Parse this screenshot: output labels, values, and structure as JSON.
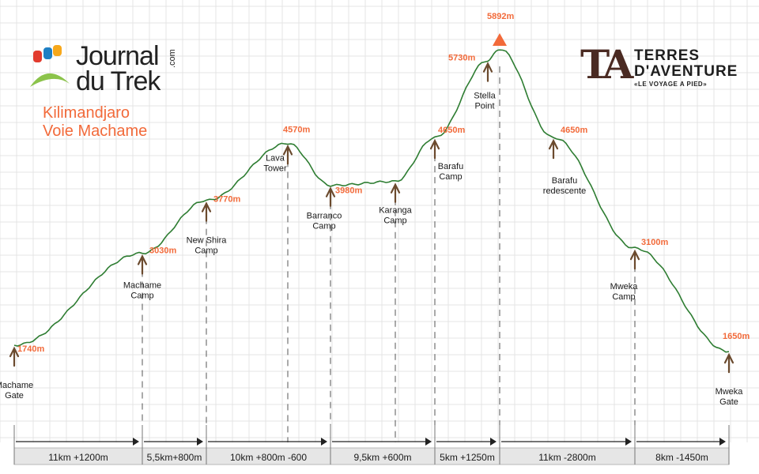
{
  "logos": {
    "journal": {
      "line1": "Journal",
      "line2": "du Trek",
      "suffix": ".com"
    },
    "terres": {
      "mark": "TA",
      "line1": "TERRES",
      "line2": "D'AVENTURE",
      "tagline": "«LE VOYAGE A PIED»"
    }
  },
  "route_title": {
    "line1": "Kilimandjaro",
    "line2": "Voie Machame"
  },
  "colors": {
    "profile_line": "#2e7d32",
    "altitude_label": "#f26a3a",
    "marker_arrow": "#6b4a2e",
    "summit_marker": "#f26a3a",
    "grid": "#e4e4e4",
    "segment_bar": "#e6e6e6"
  },
  "chart_data": {
    "type": "line",
    "title": "",
    "ylabel": "",
    "xlabel": "",
    "grid": true,
    "ylim": [
      1500,
      6000
    ],
    "waypoints": [
      {
        "name_lines": [
          "Machame",
          "Gate"
        ],
        "altitude": "1740m",
        "elevation": 1740
      },
      {
        "name_lines": [
          "Machame",
          "Camp"
        ],
        "altitude": "3030m",
        "elevation": 3030
      },
      {
        "name_lines": [
          "New Shira",
          "Camp"
        ],
        "altitude": "3770m",
        "elevation": 3770
      },
      {
        "name_lines": [
          "Lava",
          "Tower"
        ],
        "altitude": "4570m",
        "elevation": 4570
      },
      {
        "name_lines": [
          "Barranco",
          "Camp"
        ],
        "altitude": "3980m",
        "elevation": 3980
      },
      {
        "name_lines": [
          "Karanga",
          "Camp"
        ],
        "altitude": "",
        "elevation": 4035
      },
      {
        "name_lines": [
          "Barafu",
          "Camp"
        ],
        "altitude": "4650m",
        "elevation": 4650
      },
      {
        "name_lines": [
          "Stella",
          "Point"
        ],
        "altitude": "5730m",
        "elevation": 5730
      },
      {
        "name_lines": [],
        "altitude": "5892m",
        "elevation": 5892,
        "summit": true
      },
      {
        "name_lines": [
          "Barafu",
          "redescente"
        ],
        "altitude": "4650m",
        "elevation": 4650
      },
      {
        "name_lines": [
          "Mweka",
          "Camp"
        ],
        "altitude": "3100m",
        "elevation": 3100
      },
      {
        "name_lines": [
          "Mweka",
          "Gate"
        ],
        "altitude": "1650m",
        "elevation": 1650
      }
    ],
    "segments": [
      {
        "label": "11km +1200m"
      },
      {
        "label": "5,5km+800m"
      },
      {
        "label": "10km +800m -600"
      },
      {
        "label": "9,5km +600m"
      },
      {
        "label": "5km +1250m"
      },
      {
        "label": "11km -2800m"
      },
      {
        "label": "8km -1450m"
      }
    ]
  }
}
